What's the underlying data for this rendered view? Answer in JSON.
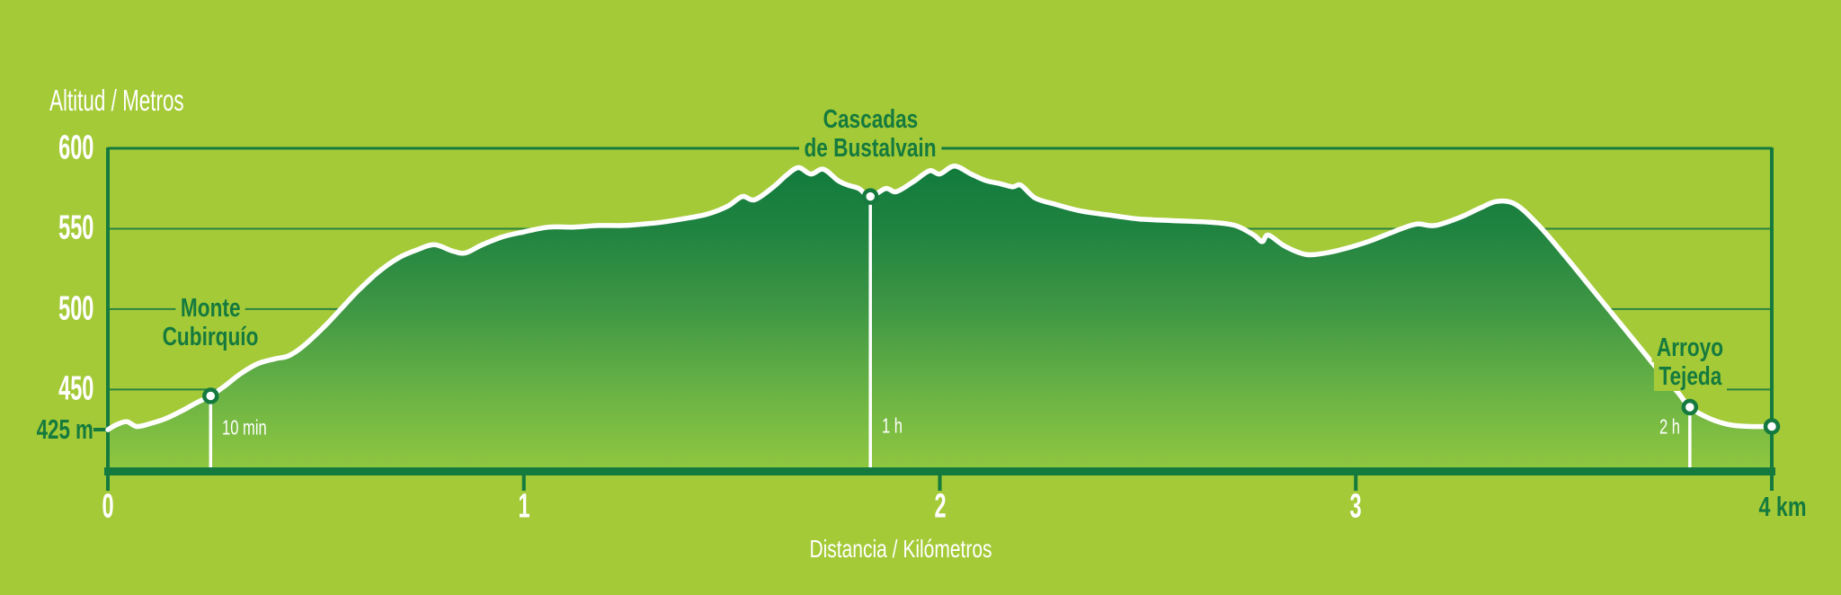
{
  "y_axis": {
    "title": "Altitud / Metros",
    "labels": [
      "600",
      "550",
      "500",
      "450"
    ],
    "values": [
      600,
      550,
      500,
      450
    ],
    "base_label": "425 m",
    "base_value": 425
  },
  "x_axis": {
    "title": "Distancia / Kilómetros",
    "labels": [
      "0",
      "1",
      "2",
      "3"
    ],
    "values": [
      0,
      1,
      2,
      3
    ],
    "end_label": "4 km",
    "end_value": 4
  },
  "waypoints": [
    {
      "name_line1": "Monte",
      "name_line2": "Cubirquío",
      "time": "10 min",
      "km": 0.247,
      "elevation_m": 446
    },
    {
      "name_line1": "Cascadas",
      "name_line2": "de Bustalvain",
      "time": "1 h",
      "km": 1.833,
      "elevation_m": 570
    },
    {
      "name_line1": "Arroyo",
      "name_line2": "Tejeda",
      "time": "2 h",
      "km": 3.803,
      "elevation_m": 439
    }
  ],
  "end_point": {
    "km": 4.0,
    "elevation_m": 427
  },
  "colors": {
    "background": "#a4ca37",
    "dark_green": "#157a3e",
    "gridline": "#2a8441",
    "profile_line": "#ffffff",
    "fill_top": "#0d783b",
    "fill_mid": "#3f9744",
    "fill_bottom": "#90c73f",
    "text_light": "#ffffff"
  },
  "chart_data": {
    "type": "area",
    "title": "",
    "xlabel": "Distancia / Kilómetros",
    "ylabel": "Altitud / Metros",
    "xlim": [
      0,
      4
    ],
    "ylim": [
      401,
      600
    ],
    "x_unit": "km",
    "y_unit": "m",
    "x_ticks": [
      0,
      1,
      2,
      3,
      4
    ],
    "y_ticks": [
      450,
      500,
      550,
      600
    ],
    "y_base_tick": 425,
    "grid": true,
    "legend": false,
    "series": [
      {
        "name": "elevation_profile",
        "points_km_m": [
          [
            0.0,
            425
          ],
          [
            0.02,
            428
          ],
          [
            0.045,
            430
          ],
          [
            0.07,
            427
          ],
          [
            0.105,
            429
          ],
          [
            0.14,
            432
          ],
          [
            0.18,
            437
          ],
          [
            0.215,
            442
          ],
          [
            0.247,
            446
          ],
          [
            0.28,
            452
          ],
          [
            0.32,
            460
          ],
          [
            0.36,
            466
          ],
          [
            0.4,
            469
          ],
          [
            0.435,
            471
          ],
          [
            0.47,
            477
          ],
          [
            0.52,
            489
          ],
          [
            0.56,
            500
          ],
          [
            0.6,
            511
          ],
          [
            0.65,
            523
          ],
          [
            0.7,
            532
          ],
          [
            0.745,
            537
          ],
          [
            0.785,
            540
          ],
          [
            0.83,
            536
          ],
          [
            0.86,
            535
          ],
          [
            0.9,
            540
          ],
          [
            0.95,
            545
          ],
          [
            1.0,
            548
          ],
          [
            1.06,
            551
          ],
          [
            1.12,
            551
          ],
          [
            1.18,
            552
          ],
          [
            1.24,
            552
          ],
          [
            1.29,
            553
          ],
          [
            1.33,
            554
          ],
          [
            1.38,
            556
          ],
          [
            1.44,
            559
          ],
          [
            1.49,
            564
          ],
          [
            1.525,
            570
          ],
          [
            1.555,
            568
          ],
          [
            1.6,
            576
          ],
          [
            1.63,
            583
          ],
          [
            1.66,
            588
          ],
          [
            1.69,
            584
          ],
          [
            1.72,
            587
          ],
          [
            1.755,
            580
          ],
          [
            1.78,
            577
          ],
          [
            1.805,
            575
          ],
          [
            1.833,
            570
          ],
          [
            1.87,
            575
          ],
          [
            1.895,
            573
          ],
          [
            1.935,
            579
          ],
          [
            1.975,
            586
          ],
          [
            2.0,
            584
          ],
          [
            2.035,
            589
          ],
          [
            2.075,
            584
          ],
          [
            2.11,
            580
          ],
          [
            2.145,
            578
          ],
          [
            2.175,
            576
          ],
          [
            2.195,
            577
          ],
          [
            2.23,
            569
          ],
          [
            2.28,
            565
          ],
          [
            2.34,
            561
          ],
          [
            2.42,
            558
          ],
          [
            2.48,
            556
          ],
          [
            2.56,
            555
          ],
          [
            2.65,
            554
          ],
          [
            2.71,
            552
          ],
          [
            2.755,
            546
          ],
          [
            2.775,
            542
          ],
          [
            2.79,
            546
          ],
          [
            2.83,
            539
          ],
          [
            2.88,
            534
          ],
          [
            2.93,
            535
          ],
          [
            2.98,
            538
          ],
          [
            3.03,
            542
          ],
          [
            3.08,
            547
          ],
          [
            3.12,
            551
          ],
          [
            3.15,
            553
          ],
          [
            3.19,
            552
          ],
          [
            3.25,
            557
          ],
          [
            3.3,
            563
          ],
          [
            3.34,
            567
          ],
          [
            3.385,
            565
          ],
          [
            3.44,
            552
          ],
          [
            3.5,
            534
          ],
          [
            3.56,
            515
          ],
          [
            3.62,
            496
          ],
          [
            3.68,
            477
          ],
          [
            3.74,
            458
          ],
          [
            3.775,
            448
          ],
          [
            3.803,
            439
          ],
          [
            3.85,
            432
          ],
          [
            3.9,
            428
          ],
          [
            3.95,
            427
          ],
          [
            4.0,
            427
          ]
        ]
      }
    ],
    "annotations": [
      {
        "label": "Monte Cubirquío",
        "km": 0.247,
        "elevation_m": 446,
        "time": "10 min"
      },
      {
        "label": "Cascadas de Bustalvain",
        "km": 1.833,
        "elevation_m": 570,
        "time": "1 h"
      },
      {
        "label": "Arroyo Tejeda",
        "km": 3.803,
        "elevation_m": 439,
        "time": "2 h"
      }
    ]
  }
}
